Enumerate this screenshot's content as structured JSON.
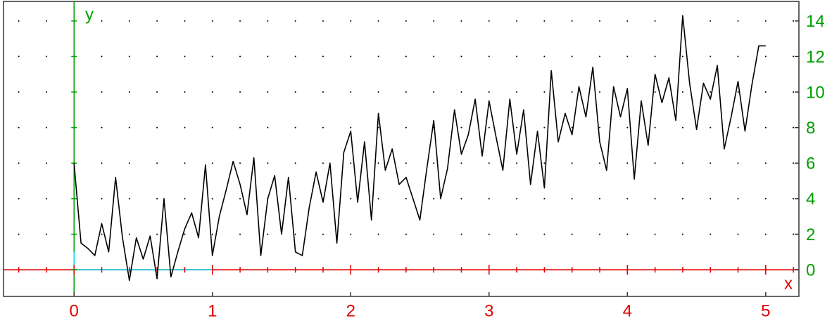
{
  "chart_data": {
    "type": "line",
    "xlabel": "x",
    "ylabel": "y",
    "x": [
      0,
      0.05,
      0.1,
      0.15,
      0.2,
      0.25,
      0.3,
      0.35,
      0.4,
      0.45,
      0.5,
      0.55,
      0.6,
      0.65,
      0.7,
      0.75,
      0.8,
      0.85,
      0.9,
      0.95,
      1,
      1.05,
      1.1,
      1.15,
      1.2,
      1.25,
      1.3,
      1.35,
      1.4,
      1.45,
      1.5,
      1.55,
      1.6,
      1.65,
      1.7,
      1.75,
      1.8,
      1.85,
      1.9,
      1.95,
      2,
      2.05,
      2.1,
      2.15,
      2.2,
      2.25,
      2.3,
      2.35,
      2.4,
      2.45,
      2.5,
      2.55,
      2.6,
      2.65,
      2.7,
      2.75,
      2.8,
      2.85,
      2.9,
      2.95,
      3,
      3.05,
      3.1,
      3.15,
      3.2,
      3.25,
      3.3,
      3.35,
      3.4,
      3.45,
      3.5,
      3.55,
      3.6,
      3.65,
      3.7,
      3.75,
      3.8,
      3.85,
      3.9,
      3.95,
      4,
      4.05,
      4.1,
      4.15,
      4.2,
      4.25,
      4.3,
      4.35,
      4.4,
      4.45,
      4.5,
      4.55,
      4.6,
      4.65,
      4.7,
      4.75,
      4.8,
      4.85,
      4.9,
      4.95,
      5
    ],
    "values": [
      6,
      1.5,
      1.2,
      0.8,
      2.6,
      1,
      5.2,
      1.8,
      -0.6,
      1.8,
      0.6,
      1.9,
      -0.5,
      4,
      -0.4,
      1,
      2.3,
      3.2,
      1.8,
      5.9,
      0.8,
      3,
      4.5,
      6.1,
      4.8,
      3.1,
      6.3,
      0.8,
      4,
      5.3,
      2,
      5.2,
      1,
      0.8,
      3.5,
      5.5,
      3.8,
      6,
      1.5,
      6.6,
      7.8,
      3.8,
      7.2,
      2.8,
      8.8,
      5.6,
      6.8,
      4.8,
      5.2,
      4,
      2.8,
      5.7,
      8.4,
      4,
      5.7,
      9,
      6.5,
      7.6,
      9.6,
      6.4,
      9.5,
      7.5,
      5.6,
      9.6,
      6.5,
      9,
      4.8,
      7.8,
      4.6,
      11.2,
      7.2,
      8.8,
      7.6,
      10.3,
      8.6,
      11.4,
      7.2,
      5.6,
      10.3,
      8.6,
      10.2,
      5.1,
      9.5,
      7,
      11,
      9.4,
      10.8,
      8.4,
      14.3,
      10.5,
      7.9,
      10.5,
      9.6,
      11.5,
      6.8,
      8.6,
      10.6,
      7.8,
      10.4,
      12.6,
      12.6
    ],
    "color": "#000000",
    "xlim": [
      -0.51,
      5.24
    ],
    "ylim": [
      -1.5,
      15.1
    ],
    "xticks": [
      0,
      1,
      2,
      3,
      4,
      5
    ],
    "xminorticks": [
      -0.4,
      -0.2,
      0,
      0.2,
      0.4,
      0.6,
      0.8,
      1,
      1.2,
      1.4,
      1.6,
      1.8,
      2,
      2.2,
      2.4,
      2.6,
      2.8,
      3,
      3.2,
      3.4,
      3.6,
      3.8,
      4,
      4.2,
      4.4,
      4.6,
      4.8,
      5,
      5.2
    ],
    "yticks": [
      0,
      2,
      4,
      6,
      8,
      10,
      12,
      14
    ],
    "grid": true
  }
}
